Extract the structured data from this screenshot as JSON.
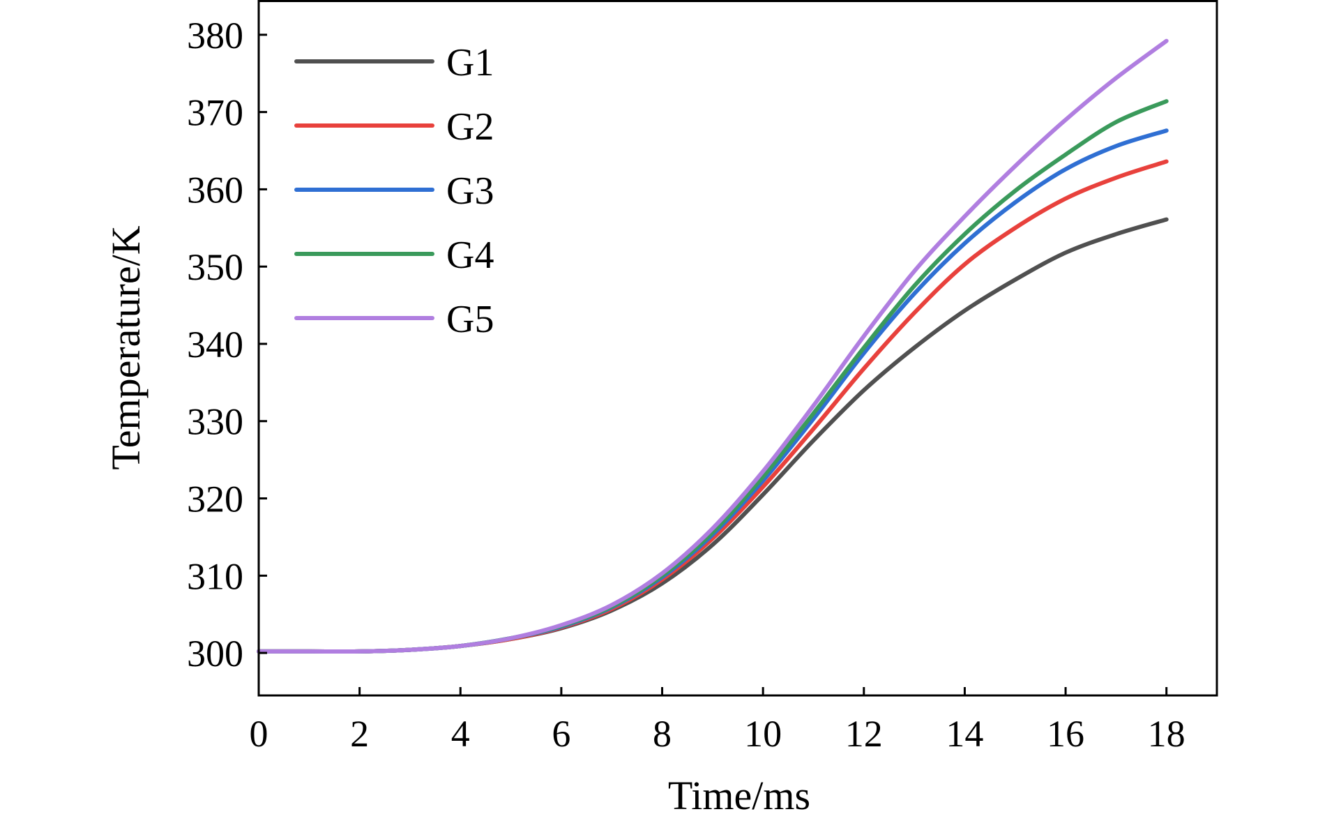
{
  "chart_data": {
    "type": "line",
    "title": "",
    "xlabel": "Time/ms",
    "ylabel": "Temperature/K",
    "xlim": [
      0,
      19
    ],
    "ylim": [
      294.5,
      384.5
    ],
    "xticks": [
      0,
      2,
      4,
      6,
      8,
      10,
      12,
      14,
      16,
      18
    ],
    "yticks": [
      300,
      310,
      320,
      330,
      340,
      350,
      360,
      370,
      380
    ],
    "grid": false,
    "legend_position": "top-left",
    "x": [
      0,
      1,
      2,
      3,
      4,
      5,
      6,
      7,
      8,
      9,
      10,
      11,
      12,
      13,
      14,
      15,
      16,
      17,
      18
    ],
    "series": [
      {
        "name": "G1",
        "color": "#505050",
        "values": [
          300.2,
          300.2,
          300.2,
          300.4,
          300.9,
          301.8,
          303.2,
          305.5,
          309.0,
          314.0,
          320.5,
          327.5,
          334.0,
          339.5,
          344.3,
          348.3,
          351.8,
          354.2,
          356.1
        ]
      },
      {
        "name": "G2",
        "color": "#e8413c",
        "values": [
          300.2,
          300.2,
          300.2,
          300.4,
          300.9,
          301.8,
          303.3,
          305.7,
          309.5,
          314.8,
          321.5,
          329.0,
          336.8,
          344.0,
          350.3,
          355.0,
          358.8,
          361.5,
          363.6
        ]
      },
      {
        "name": "G3",
        "color": "#2f6fd3",
        "values": [
          300.2,
          300.2,
          300.2,
          300.4,
          300.9,
          301.9,
          303.4,
          305.9,
          309.8,
          315.3,
          322.3,
          330.3,
          338.8,
          346.5,
          353.0,
          358.3,
          362.6,
          365.6,
          367.6
        ]
      },
      {
        "name": "G4",
        "color": "#3a9a5b",
        "values": [
          300.2,
          300.2,
          300.2,
          300.4,
          300.9,
          301.9,
          303.5,
          306.0,
          310.0,
          315.6,
          322.8,
          331.0,
          339.5,
          347.5,
          354.2,
          359.8,
          364.5,
          368.7,
          371.4
        ]
      },
      {
        "name": "G5",
        "color": "#b07ee0",
        "values": [
          300.2,
          300.2,
          300.2,
          300.4,
          300.9,
          301.9,
          303.6,
          306.2,
          310.3,
          316.1,
          323.5,
          332.0,
          341.0,
          349.4,
          356.5,
          363.0,
          369.0,
          374.4,
          379.2
        ]
      }
    ]
  }
}
